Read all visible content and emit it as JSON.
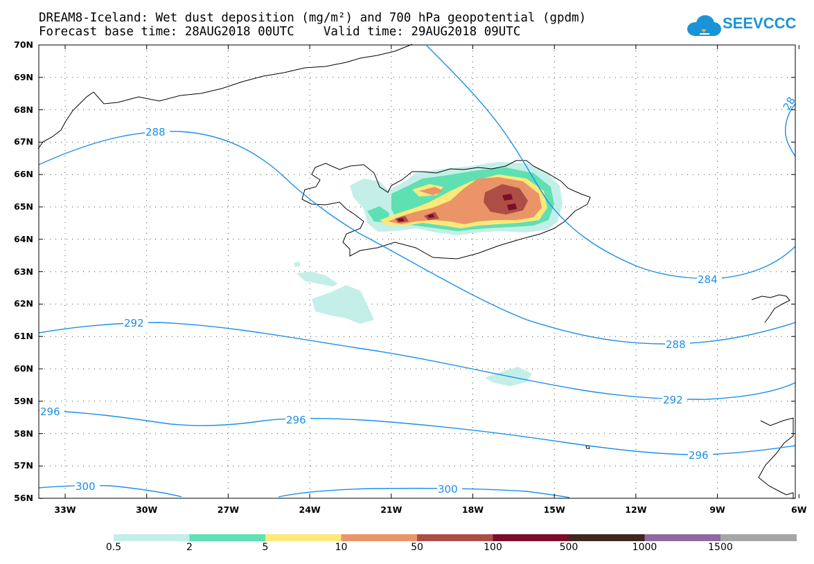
{
  "header": {
    "title_line1": "DREAM8-Iceland: Wet dust deposition (mg/m²) and 700 hPa geopotential (gpdm)",
    "title_line2": "Forecast base time: 28AUG2018 00UTC    Valid time: 29AUG2018 09UTC"
  },
  "logo": {
    "text": "SEEVCCC",
    "color": "#1a94d6"
  },
  "map": {
    "lat_labels": [
      "70N",
      "69N",
      "68N",
      "67N",
      "66N",
      "65N",
      "64N",
      "63N",
      "62N",
      "61N",
      "60N",
      "59N",
      "58N",
      "57N",
      "56N"
    ],
    "lon_labels": [
      "33W",
      "30W",
      "27W",
      "24W",
      "21W",
      "18W",
      "15W",
      "12W",
      "9W",
      "6W"
    ],
    "contour_color": "#1a8fe8",
    "contour_labels": [
      "288",
      "292",
      "296",
      "300",
      "284",
      "288",
      "292",
      "296",
      "300",
      "296",
      "28"
    ]
  },
  "colorbar": {
    "colors": [
      "#c3efe8",
      "#5fe0b2",
      "#fbe97a",
      "#eb9467",
      "#ad4e46",
      "#7d0c28",
      "#3f2620",
      "#8f6aa1",
      "#a6a6a6"
    ],
    "ticks": [
      "0.5",
      "2",
      "5",
      "10",
      "50",
      "100",
      "500",
      "1000",
      "1500"
    ]
  }
}
